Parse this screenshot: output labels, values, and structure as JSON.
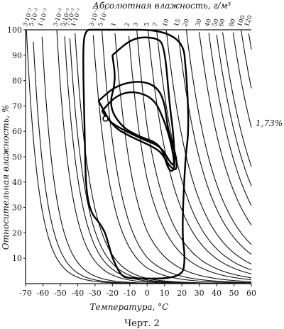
{
  "chart_data": {
    "type": "line",
    "xlabel": "Температура, °С",
    "ylabel": "Относительная влажность, %",
    "top_label": "Абсолютная влажность, г/м³",
    "caption": "Черт. 2",
    "annotation": "1,73%",
    "xlim": [
      -70,
      60
    ],
    "ylim": [
      0,
      100
    ],
    "x_ticks": [
      "-70",
      "-60",
      "-50",
      "-40",
      "-30",
      "-20",
      "-10",
      "0",
      "10",
      "20",
      "30",
      "40",
      "50",
      "60"
    ],
    "y_ticks": [
      "10",
      "20",
      "30",
      "40",
      "50",
      "60",
      "70",
      "80",
      "90",
      "100"
    ],
    "absolute_humidity_labels": [
      "3·10⁻³",
      "5·10⁻³",
      "1·10⁻²",
      "3·10⁻²",
      "5·10⁻²",
      "7·10⁻²",
      "1·10⁻¹",
      "3·10⁻¹",
      "5·10⁻¹",
      "1",
      "2",
      "3",
      "5",
      "7",
      "10",
      "15",
      "20",
      "30",
      "40",
      "50",
      "60",
      "80",
      "100",
      "120"
    ],
    "absolute_humidity_values": [
      0.003,
      0.005,
      0.01,
      0.03,
      0.05,
      0.07,
      0.1,
      0.3,
      0.5,
      1,
      2,
      3,
      5,
      7,
      10,
      15,
      20,
      30,
      40,
      50,
      60,
      80,
      100,
      120
    ],
    "contours": [
      {
        "points": [
          [
            -30,
            100
          ],
          [
            20,
            100
          ],
          [
            23,
            80
          ],
          [
            24,
            60
          ],
          [
            22,
            50
          ],
          [
            20,
            20
          ],
          [
            22,
            10
          ],
          [
            20,
            2
          ],
          [
            -10,
            2
          ],
          [
            -15,
            3
          ],
          [
            -20,
            10
          ],
          [
            -22,
            15
          ],
          [
            -25,
            22
          ],
          [
            -35,
            30
          ],
          [
            -36,
            60
          ],
          [
            -37,
            90
          ],
          [
            -36,
            100
          ],
          [
            -30,
            100
          ]
        ]
      },
      {
        "points": [
          [
            -20,
            90
          ],
          [
            -8,
            97
          ],
          [
            5,
            97
          ],
          [
            10,
            94
          ],
          [
            13,
            70
          ],
          [
            15,
            60
          ],
          [
            16,
            48
          ],
          [
            15,
            44
          ],
          [
            12,
            45
          ],
          [
            8,
            55
          ],
          [
            -5,
            58
          ],
          [
            -15,
            62
          ],
          [
            -22,
            70
          ],
          [
            -18,
            80
          ],
          [
            -20,
            90
          ]
        ]
      },
      {
        "points": [
          [
            -28,
            72
          ],
          [
            -18,
            78
          ],
          [
            -5,
            80
          ],
          [
            5,
            78
          ],
          [
            10,
            72
          ],
          [
            12,
            60
          ],
          [
            17,
            50
          ],
          [
            17,
            44
          ],
          [
            12,
            47
          ],
          [
            8,
            52
          ],
          [
            0,
            55
          ],
          [
            -10,
            58
          ],
          [
            -20,
            62
          ],
          [
            -28,
            72
          ]
        ]
      },
      {
        "points": [
          [
            -26,
            68
          ],
          [
            -18,
            74
          ],
          [
            -8,
            76
          ],
          [
            4,
            73
          ],
          [
            10,
            64
          ],
          [
            14,
            55
          ],
          [
            16,
            46
          ],
          [
            13,
            48
          ],
          [
            8,
            54
          ],
          [
            -3,
            57
          ],
          [
            -15,
            61
          ],
          [
            -22,
            64
          ],
          [
            -26,
            68
          ]
        ]
      }
    ],
    "marker": {
      "x": -24,
      "y": 65
    },
    "grid": false
  }
}
